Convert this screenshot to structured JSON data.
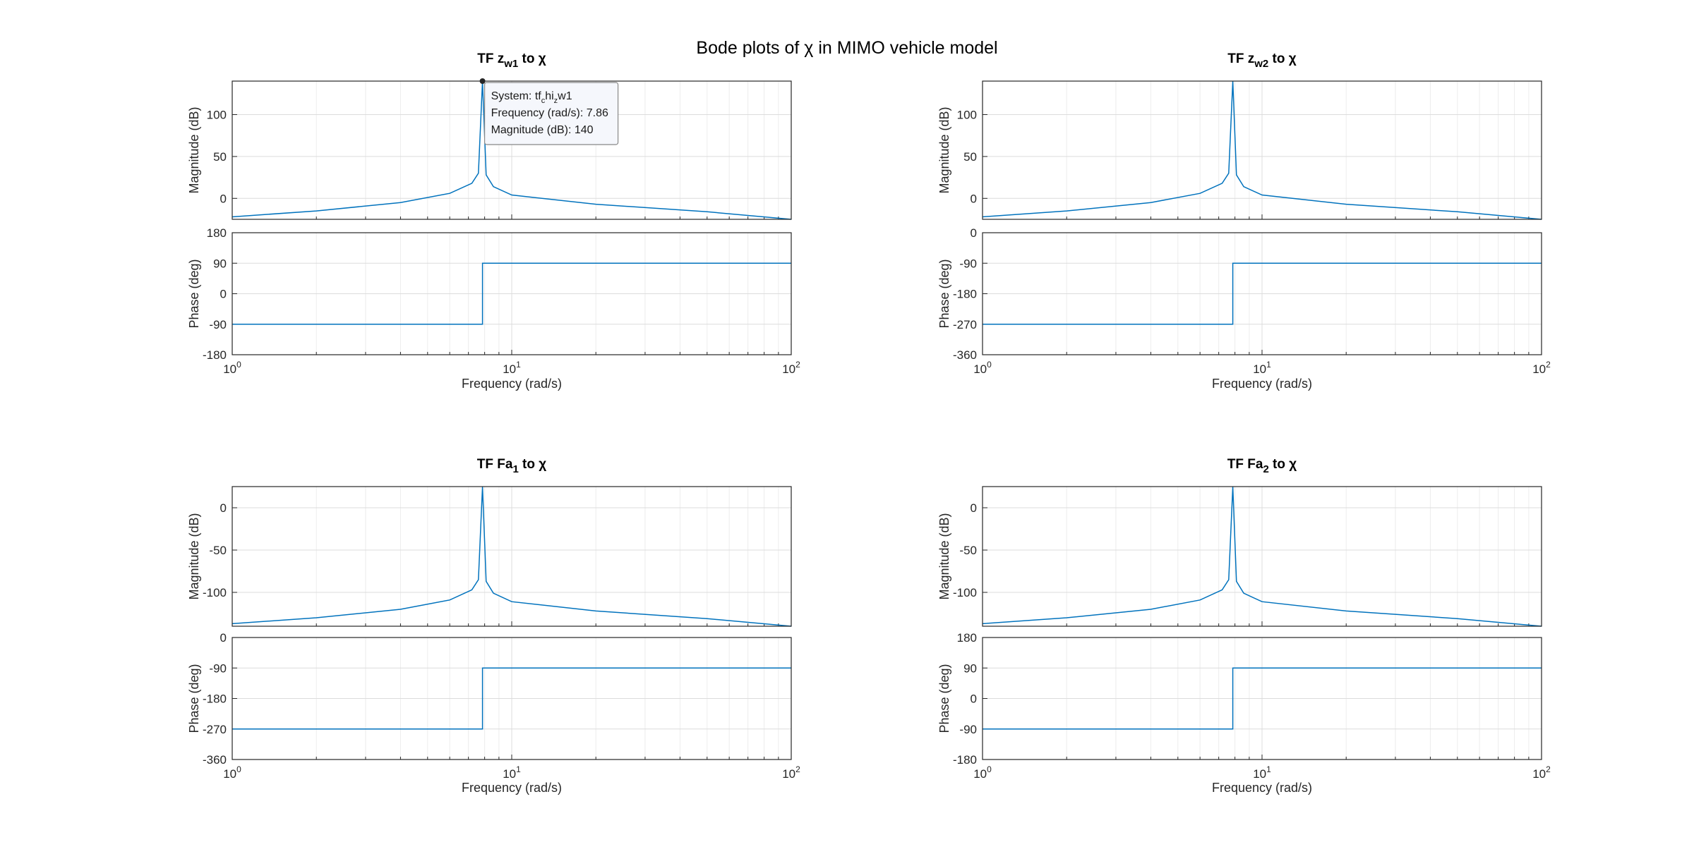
{
  "figure": {
    "title": "Bode plots of χ in MIMO vehicle model"
  },
  "chart_data": [
    {
      "type": "line",
      "title": "TF z_w1 to χ",
      "title_parts": {
        "main": "TF z",
        "sub": "w1",
        "rest": " to χ"
      },
      "x_scale": "log",
      "xlim": [
        1,
        100
      ],
      "xlabel": "Frequency  (rad/s)",
      "x_ticks": [
        "10^0",
        "10^1",
        "10^2"
      ],
      "magnitude": {
        "ylabel": "Magnitude (dB)",
        "ylim": [
          -25,
          140
        ],
        "yticks": [
          0,
          50,
          100
        ],
        "resonance_freq": 7.86,
        "peak_db": 140,
        "x": [
          1,
          2,
          4,
          6,
          7.2,
          7.6,
          7.86,
          8.1,
          8.6,
          10,
          20,
          50,
          100
        ],
        "y": [
          -22,
          -15,
          -5,
          6,
          18,
          30,
          140,
          28,
          14,
          4,
          -7,
          -16,
          -25
        ]
      },
      "phase": {
        "ylabel": "Phase (deg)",
        "ylim": [
          -180,
          180
        ],
        "yticks": [
          -180,
          -90,
          0,
          90,
          180
        ],
        "x": [
          1,
          7.86,
          7.86,
          100
        ],
        "y": [
          -90,
          -90,
          90,
          90
        ]
      },
      "datatip": {
        "system_label": "System: ",
        "system_parts": [
          "tf",
          "c",
          "hi",
          "z",
          "w1"
        ],
        "frequency_line": "Frequency (rad/s): 7.86",
        "magnitude_line": "Magnitude (dB): 140",
        "x": 7.86,
        "y": 140
      },
      "grid": true
    },
    {
      "type": "line",
      "title": "TF z_w2 to χ",
      "title_parts": {
        "main": "TF z",
        "sub": "w2",
        "rest": " to χ"
      },
      "x_scale": "log",
      "xlim": [
        1,
        100
      ],
      "xlabel": "Frequency  (rad/s)",
      "x_ticks": [
        "10^0",
        "10^1",
        "10^2"
      ],
      "magnitude": {
        "ylabel": "Magnitude (dB)",
        "ylim": [
          -25,
          140
        ],
        "yticks": [
          0,
          50,
          100
        ],
        "resonance_freq": 7.86,
        "peak_db": 140,
        "x": [
          1,
          2,
          4,
          6,
          7.2,
          7.6,
          7.86,
          8.1,
          8.6,
          10,
          20,
          50,
          100
        ],
        "y": [
          -22,
          -15,
          -5,
          6,
          18,
          30,
          140,
          28,
          14,
          4,
          -7,
          -16,
          -25
        ]
      },
      "phase": {
        "ylabel": "Phase (deg)",
        "ylim": [
          -360,
          0
        ],
        "yticks": [
          -360,
          -270,
          -180,
          -90,
          0
        ],
        "x": [
          1,
          7.86,
          7.86,
          100
        ],
        "y": [
          -270,
          -270,
          -90,
          -90
        ]
      },
      "grid": true
    },
    {
      "type": "line",
      "title": "TF Fa_1 to χ",
      "title_parts": {
        "main": "TF Fa",
        "sub": "1",
        "rest": " to χ"
      },
      "x_scale": "log",
      "xlim": [
        1,
        100
      ],
      "xlabel": "Frequency  (rad/s)",
      "x_ticks": [
        "10^0",
        "10^1",
        "10^2"
      ],
      "magnitude": {
        "ylabel": "Magnitude (dB)",
        "ylim": [
          -140,
          25
        ],
        "yticks": [
          -100,
          -50,
          0
        ],
        "resonance_freq": 7.86,
        "peak_db": 25,
        "x": [
          1,
          2,
          4,
          6,
          7.2,
          7.6,
          7.86,
          8.1,
          8.6,
          10,
          20,
          50,
          100
        ],
        "y": [
          -137,
          -130,
          -120,
          -109,
          -97,
          -85,
          25,
          -87,
          -101,
          -111,
          -122,
          -131,
          -140
        ]
      },
      "phase": {
        "ylabel": "Phase (deg)",
        "ylim": [
          -360,
          0
        ],
        "yticks": [
          -360,
          -270,
          -180,
          -90,
          0
        ],
        "x": [
          1,
          7.86,
          7.86,
          100
        ],
        "y": [
          -270,
          -270,
          -90,
          -90
        ]
      },
      "grid": true
    },
    {
      "type": "line",
      "title": "TF Fa_2 to χ",
      "title_parts": {
        "main": "TF Fa",
        "sub": "2",
        "rest": " to χ"
      },
      "x_scale": "log",
      "xlim": [
        1,
        100
      ],
      "xlabel": "Frequency  (rad/s)",
      "x_ticks": [
        "10^0",
        "10^1",
        "10^2"
      ],
      "magnitude": {
        "ylabel": "Magnitude (dB)",
        "ylim": [
          -140,
          25
        ],
        "yticks": [
          -100,
          -50,
          0
        ],
        "resonance_freq": 7.86,
        "peak_db": 25,
        "x": [
          1,
          2,
          4,
          6,
          7.2,
          7.6,
          7.86,
          8.1,
          8.6,
          10,
          20,
          50,
          100
        ],
        "y": [
          -137,
          -130,
          -120,
          -109,
          -97,
          -85,
          25,
          -87,
          -101,
          -111,
          -122,
          -131,
          -140
        ]
      },
      "phase": {
        "ylabel": "Phase (deg)",
        "ylim": [
          -180,
          180
        ],
        "yticks": [
          -180,
          -90,
          0,
          90,
          180
        ],
        "x": [
          1,
          7.86,
          7.86,
          100
        ],
        "y": [
          -90,
          -90,
          90,
          90
        ]
      },
      "grid": true
    }
  ],
  "colors": {
    "curve": "#0072BD",
    "axis": "#262626",
    "grid": "#dcdcdc"
  }
}
